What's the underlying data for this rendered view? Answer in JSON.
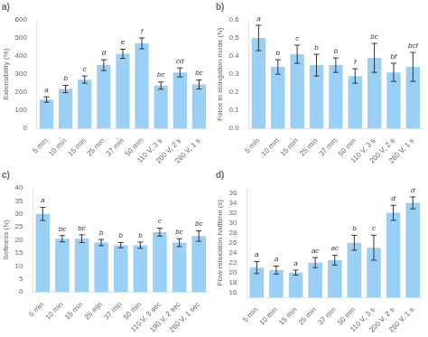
{
  "chart_data": [
    {
      "type": "bar",
      "title": "a)",
      "categories": [
        "5 min",
        "10 min",
        "15 min",
        "25 min",
        "37 min",
        "50 min",
        "110 V, 3 s",
        "200 V, 2 s",
        "260 V, 1 s"
      ],
      "values": [
        160,
        218,
        270,
        350,
        413,
        470,
        237,
        310,
        243
      ],
      "errors": [
        15,
        20,
        20,
        30,
        25,
        30,
        20,
        25,
        25
      ],
      "annotations": [
        "a",
        "b",
        "c",
        "d",
        "e",
        "f",
        "bc",
        "cd",
        "bc"
      ],
      "y_label": "Extensibility (%)",
      "ylim": [
        0,
        600
      ],
      "yticks": [
        0,
        100,
        200,
        300,
        400,
        500,
        600
      ],
      "grid": false
    },
    {
      "type": "bar",
      "title": "b)",
      "categories": [
        "5 min",
        "10 min",
        "15 min",
        "25 min",
        "37 min",
        "50 min",
        "110 V, 3 s",
        "200 V, 2 s",
        "260 V, 1 s"
      ],
      "values": [
        0.5,
        0.34,
        0.41,
        0.35,
        0.35,
        0.29,
        0.39,
        0.31,
        0.34
      ],
      "errors": [
        0.07,
        0.04,
        0.05,
        0.06,
        0.04,
        0.04,
        0.08,
        0.05,
        0.08
      ],
      "annotations": [
        "a",
        "b",
        "c",
        "b",
        "b",
        "f",
        "bc",
        "bf",
        "bcf"
      ],
      "y_label": "Force in elongation mode (N)",
      "ylim": [
        0,
        0.6
      ],
      "yticks": [
        {
          "value": 0,
          "label": "0.0"
        },
        0.1,
        0.2,
        0.3,
        0.4,
        0.5,
        0.6
      ],
      "grid": false
    },
    {
      "type": "bar",
      "title": "c)",
      "categories": [
        "5 min",
        "10 min",
        "15 min",
        "25 min",
        "37 min",
        "50 min",
        "110 V, 3 sec",
        "190 V, 2 sec",
        "260 V, 1 sec"
      ],
      "values": [
        30.0,
        20.5,
        20.5,
        19.0,
        18.0,
        18.0,
        23.0,
        19.0,
        21.5
      ],
      "errors": [
        2.5,
        1.2,
        1.5,
        1.2,
        1.0,
        1.2,
        1.5,
        1.5,
        2.0
      ],
      "annotations": [
        "a",
        "bc",
        "bc",
        "b",
        "b",
        "b",
        "c",
        "bc",
        "bc"
      ],
      "y_label": "Softness (N)",
      "ylim": [
        0,
        40
      ],
      "yticks": [
        0,
        5,
        10,
        15,
        20,
        25,
        30,
        35,
        40
      ],
      "grid": false
    },
    {
      "type": "bar",
      "title": "d)",
      "categories": [
        "5 min",
        "10 min",
        "15 min",
        "25 min",
        "37 min",
        "50 min",
        "110 V, 3 s",
        "200 V, 2 s",
        "260 V, 1 s"
      ],
      "values": [
        21.0,
        20.5,
        20.0,
        22.0,
        22.5,
        26.0,
        25.0,
        32.0,
        34.0
      ],
      "errors": [
        1.2,
        0.8,
        0.5,
        1.0,
        1.0,
        1.5,
        2.5,
        1.5,
        1.2
      ],
      "annotations": [
        "a",
        "a",
        "a",
        "ac",
        "ac",
        "b",
        "c",
        "d",
        "d"
      ],
      "y_label": "Flow relaxation halftime (s)",
      "ylim": [
        15,
        37
      ],
      "yticks": [
        16,
        18,
        20,
        22,
        24,
        26,
        28,
        30,
        32,
        34,
        36
      ],
      "grid": false
    }
  ]
}
